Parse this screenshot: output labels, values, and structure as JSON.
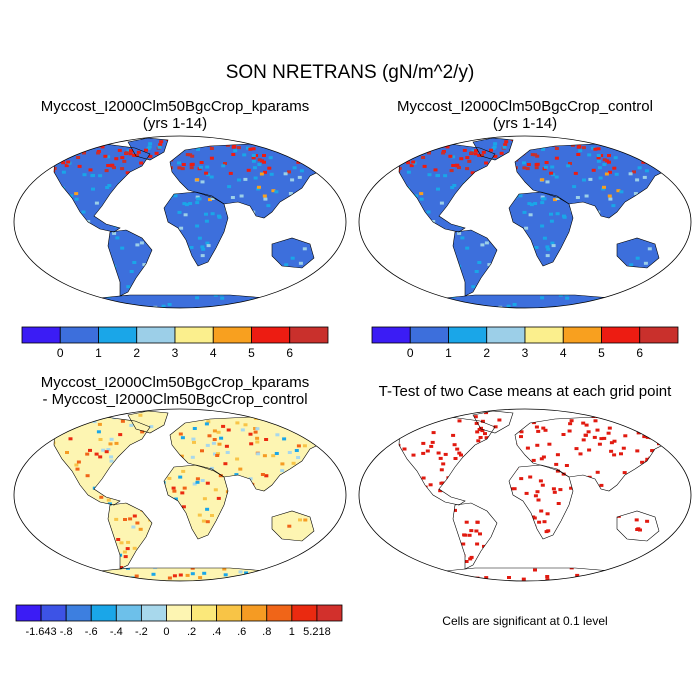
{
  "title": "SON NRETRANS (gN/m^2/y)",
  "panels": [
    {
      "id": "p1",
      "title": "Myccost_I2000Clm50BgcCrop_kparams",
      "subtitle": "(yrs 1-14)"
    },
    {
      "id": "p2",
      "title": "Myccost_I2000Clm50BgcCrop_control",
      "subtitle": "(yrs 1-14)"
    },
    {
      "id": "p3",
      "title": "Myccost_I2000Clm50BgcCrop_kparams",
      "subtitle": "- Myccost_I2000Clm50BgcCrop_control"
    },
    {
      "id": "p4",
      "title": "T-Test of two Case means at each grid point",
      "subtitle": ""
    }
  ],
  "colorbar_abs": {
    "colors": [
      "#3b1cf5",
      "#3d6fdc",
      "#1aa6e8",
      "#9ccfe8",
      "#fbef8d",
      "#f8a01f",
      "#ed1c12",
      "#c9302c"
    ],
    "labels": [
      "0",
      "1",
      "2",
      "3",
      "4",
      "5",
      "6"
    ]
  },
  "colorbar_diff": {
    "colors": [
      "#3b1cf5",
      "#3d53e6",
      "#3d7fe0",
      "#1aa6e8",
      "#6dc0ea",
      "#a8d8ec",
      "#fdf5b2",
      "#fbe87a",
      "#f8c446",
      "#f59b23",
      "#f06518",
      "#ea2a10",
      "#d2302c"
    ],
    "labels": [
      "-1.643",
      "-.8",
      "-.6",
      "-.4",
      "-.2",
      "0",
      ".2",
      ".4",
      ".6",
      ".8",
      "1",
      "5.218"
    ]
  },
  "significance_note": "Cells are significant at 0.1 level",
  "map_colors": {
    "ocean": "#ffffff",
    "land_abs": "#3d6fdc",
    "land_diff": "#fdf5b2",
    "significant": "#e11a10"
  }
}
